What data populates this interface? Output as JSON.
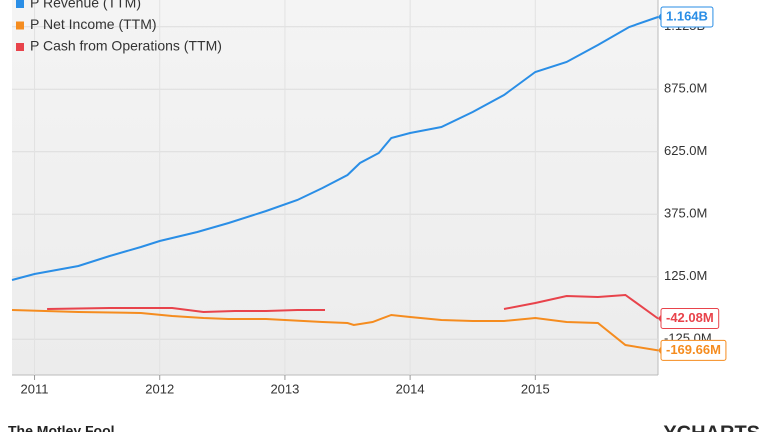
{
  "chart_data": {
    "type": "line",
    "series": [
      {
        "name": "P Revenue (TTM)",
        "color": "#2a8ee6",
        "x": [
          2010.82,
          2011.0,
          2011.35,
          2011.6,
          2011.85,
          2012.0,
          2012.3,
          2012.55,
          2012.85,
          2013.1,
          2013.3,
          2013.5,
          2013.6,
          2013.75,
          2013.85,
          2014.0,
          2014.25,
          2014.5,
          2014.75,
          2015.0,
          2015.25,
          2015.5,
          2015.75,
          2015.98
        ],
        "values": [
          112,
          136,
          168,
          208,
          244,
          268,
          304,
          340,
          388,
          432,
          480,
          532,
          580,
          620,
          680,
          700,
          724,
          784,
          852,
          944,
          984,
          1052,
          1124,
          1164
        ],
        "value_labels": [
          null,
          null,
          null,
          null,
          null,
          null,
          null,
          null,
          null,
          null,
          null,
          null,
          null,
          null,
          null,
          null,
          null,
          null,
          null,
          null,
          null,
          null,
          null,
          "1.164B"
        ]
      },
      {
        "name": "P Net Income (TTM)",
        "color": "#f58c1f",
        "x": [
          2010.82,
          2011.35,
          2011.85,
          2012.1,
          2012.35,
          2012.55,
          2012.85,
          2013.15,
          2013.3,
          2013.5,
          2013.55,
          2013.7,
          2013.85,
          2014.0,
          2014.25,
          2014.5,
          2014.75,
          2015.0,
          2015.25,
          2015.5,
          2015.72,
          2015.98
        ],
        "values": [
          -8,
          -16,
          -20,
          -32,
          -40,
          -44,
          -44,
          -52,
          -56,
          -60,
          -68,
          -56,
          -28,
          -36,
          -48,
          -52,
          -52,
          -40,
          -56,
          -60,
          -148,
          -169.66
        ],
        "value_labels": [
          null,
          null,
          null,
          null,
          null,
          null,
          null,
          null,
          null,
          null,
          null,
          null,
          null,
          null,
          null,
          null,
          null,
          null,
          null,
          null,
          null,
          "-169.66M"
        ]
      },
      {
        "name": "P Cash from Operations (TTM)",
        "color": "#e8434b",
        "x": [
          2011.1,
          2011.6,
          2012.1,
          2012.35,
          2012.6,
          2012.85,
          2013.1,
          2013.32,
          2014.0,
          2014.75,
          2015.0,
          2015.25,
          2015.5,
          2015.72,
          2015.98
        ],
        "values": [
          -4,
          0,
          0,
          -16,
          -12,
          -12,
          -8,
          -8,
          null,
          -4,
          20,
          48,
          44,
          52,
          -42.08
        ],
        "value_labels": [
          null,
          null,
          null,
          null,
          null,
          null,
          null,
          null,
          null,
          null,
          null,
          null,
          null,
          null,
          "-42.08M"
        ]
      }
    ],
    "xlim": [
      2010.82,
      2015.98
    ],
    "xticks": [
      2011,
      2012,
      2013,
      2014,
      2015
    ],
    "ylim": [
      -268,
      1232
    ],
    "yticks": [
      {
        "value": -125,
        "label": "-125.0M"
      },
      {
        "value": 125,
        "label": "125.0M"
      },
      {
        "value": 375,
        "label": "375.0M"
      },
      {
        "value": 625,
        "label": "625.0M"
      },
      {
        "value": 875,
        "label": "875.0M"
      },
      {
        "value": 1125,
        "label": "1.125B"
      }
    ],
    "grid": true,
    "legend": "top-left"
  },
  "footer": {
    "left": "The Motley Fool",
    "right": "YCHARTS"
  }
}
